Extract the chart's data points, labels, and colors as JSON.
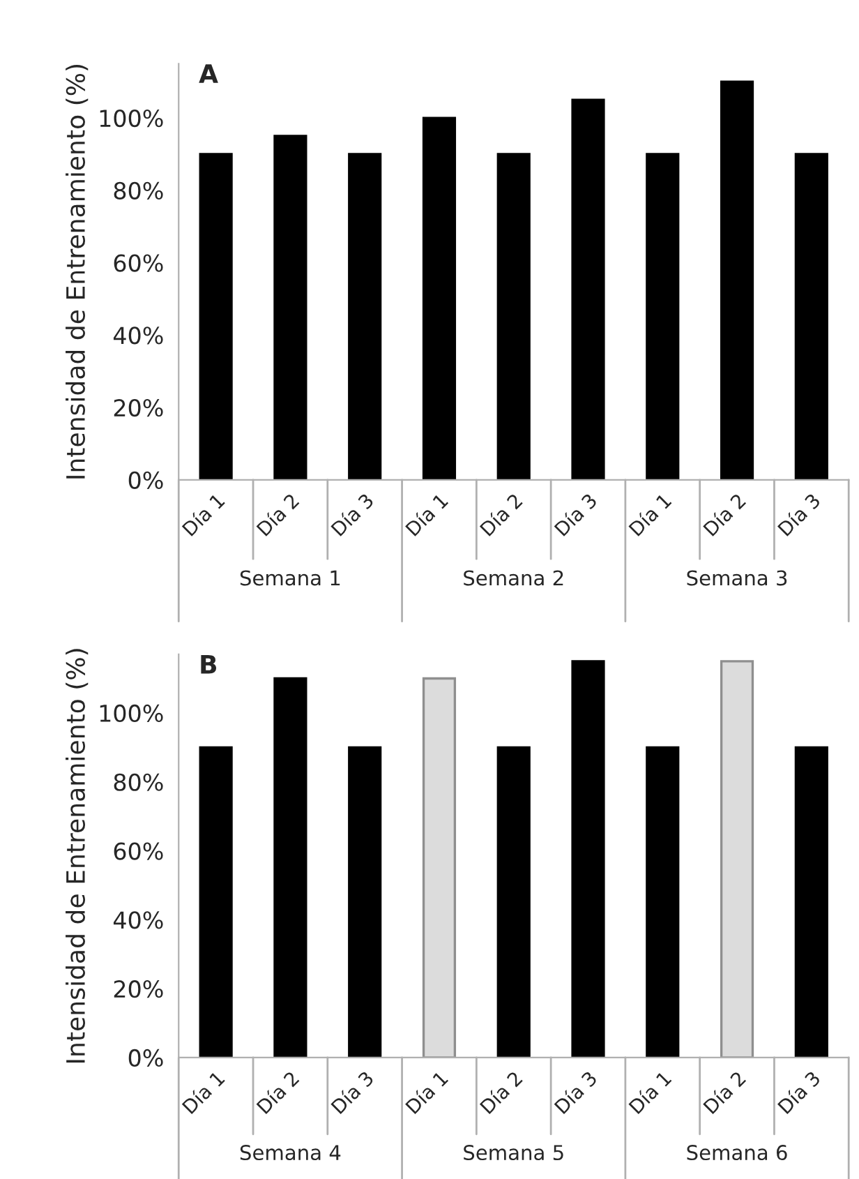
{
  "chart_data": [
    {
      "type": "bar",
      "title": "A",
      "ylabel": "Intensidad de Entrenamiento (%)",
      "categories": [
        "Día 1",
        "Día 2",
        "Día 3",
        "Día 1",
        "Día 2",
        "Día 3",
        "Día 1",
        "Día 2",
        "Día 3"
      ],
      "values": [
        90,
        95,
        90,
        100,
        90,
        105,
        90,
        110,
        90
      ],
      "colors": [
        "#000000",
        "#000000",
        "#000000",
        "#000000",
        "#000000",
        "#000000",
        "#000000",
        "#000000",
        "#000000"
      ],
      "ylim": [
        0,
        115
      ],
      "yticks": [
        {
          "value": 0,
          "label": "0%"
        },
        {
          "value": 20,
          "label": "20%"
        },
        {
          "value": 40,
          "label": "40%"
        },
        {
          "value": 60,
          "label": "60%"
        },
        {
          "value": 80,
          "label": "80%"
        },
        {
          "value": 100,
          "label": "100%"
        }
      ],
      "annotations": [
        "Semana 1",
        "Semana 2",
        "Semana 3"
      ],
      "grid": false,
      "legend": false
    },
    {
      "type": "bar",
      "title": "B",
      "ylabel": "Intensidad de Entrenamiento (%)",
      "categories": [
        "Día 1",
        "Día 2",
        "Día 3",
        "Día 1",
        "Día 2",
        "Día 3",
        "Día 1",
        "Día 2",
        "Día 3"
      ],
      "values": [
        90,
        110,
        90,
        110,
        90,
        115,
        90,
        115,
        90
      ],
      "colors": [
        "#000000",
        "#000000",
        "#000000",
        "#dcdcdc",
        "#000000",
        "#000000",
        "#000000",
        "#dcdcdc",
        "#000000"
      ],
      "ylim": [
        0,
        117
      ],
      "yticks": [
        {
          "value": 0,
          "label": "0%"
        },
        {
          "value": 20,
          "label": "20%"
        },
        {
          "value": 40,
          "label": "40%"
        },
        {
          "value": 60,
          "label": "60%"
        },
        {
          "value": 80,
          "label": "80%"
        },
        {
          "value": 100,
          "label": "100%"
        }
      ],
      "annotations": [
        "Semana 4",
        "Semana 5",
        "Semana 6"
      ],
      "grid": false,
      "legend": false
    }
  ]
}
